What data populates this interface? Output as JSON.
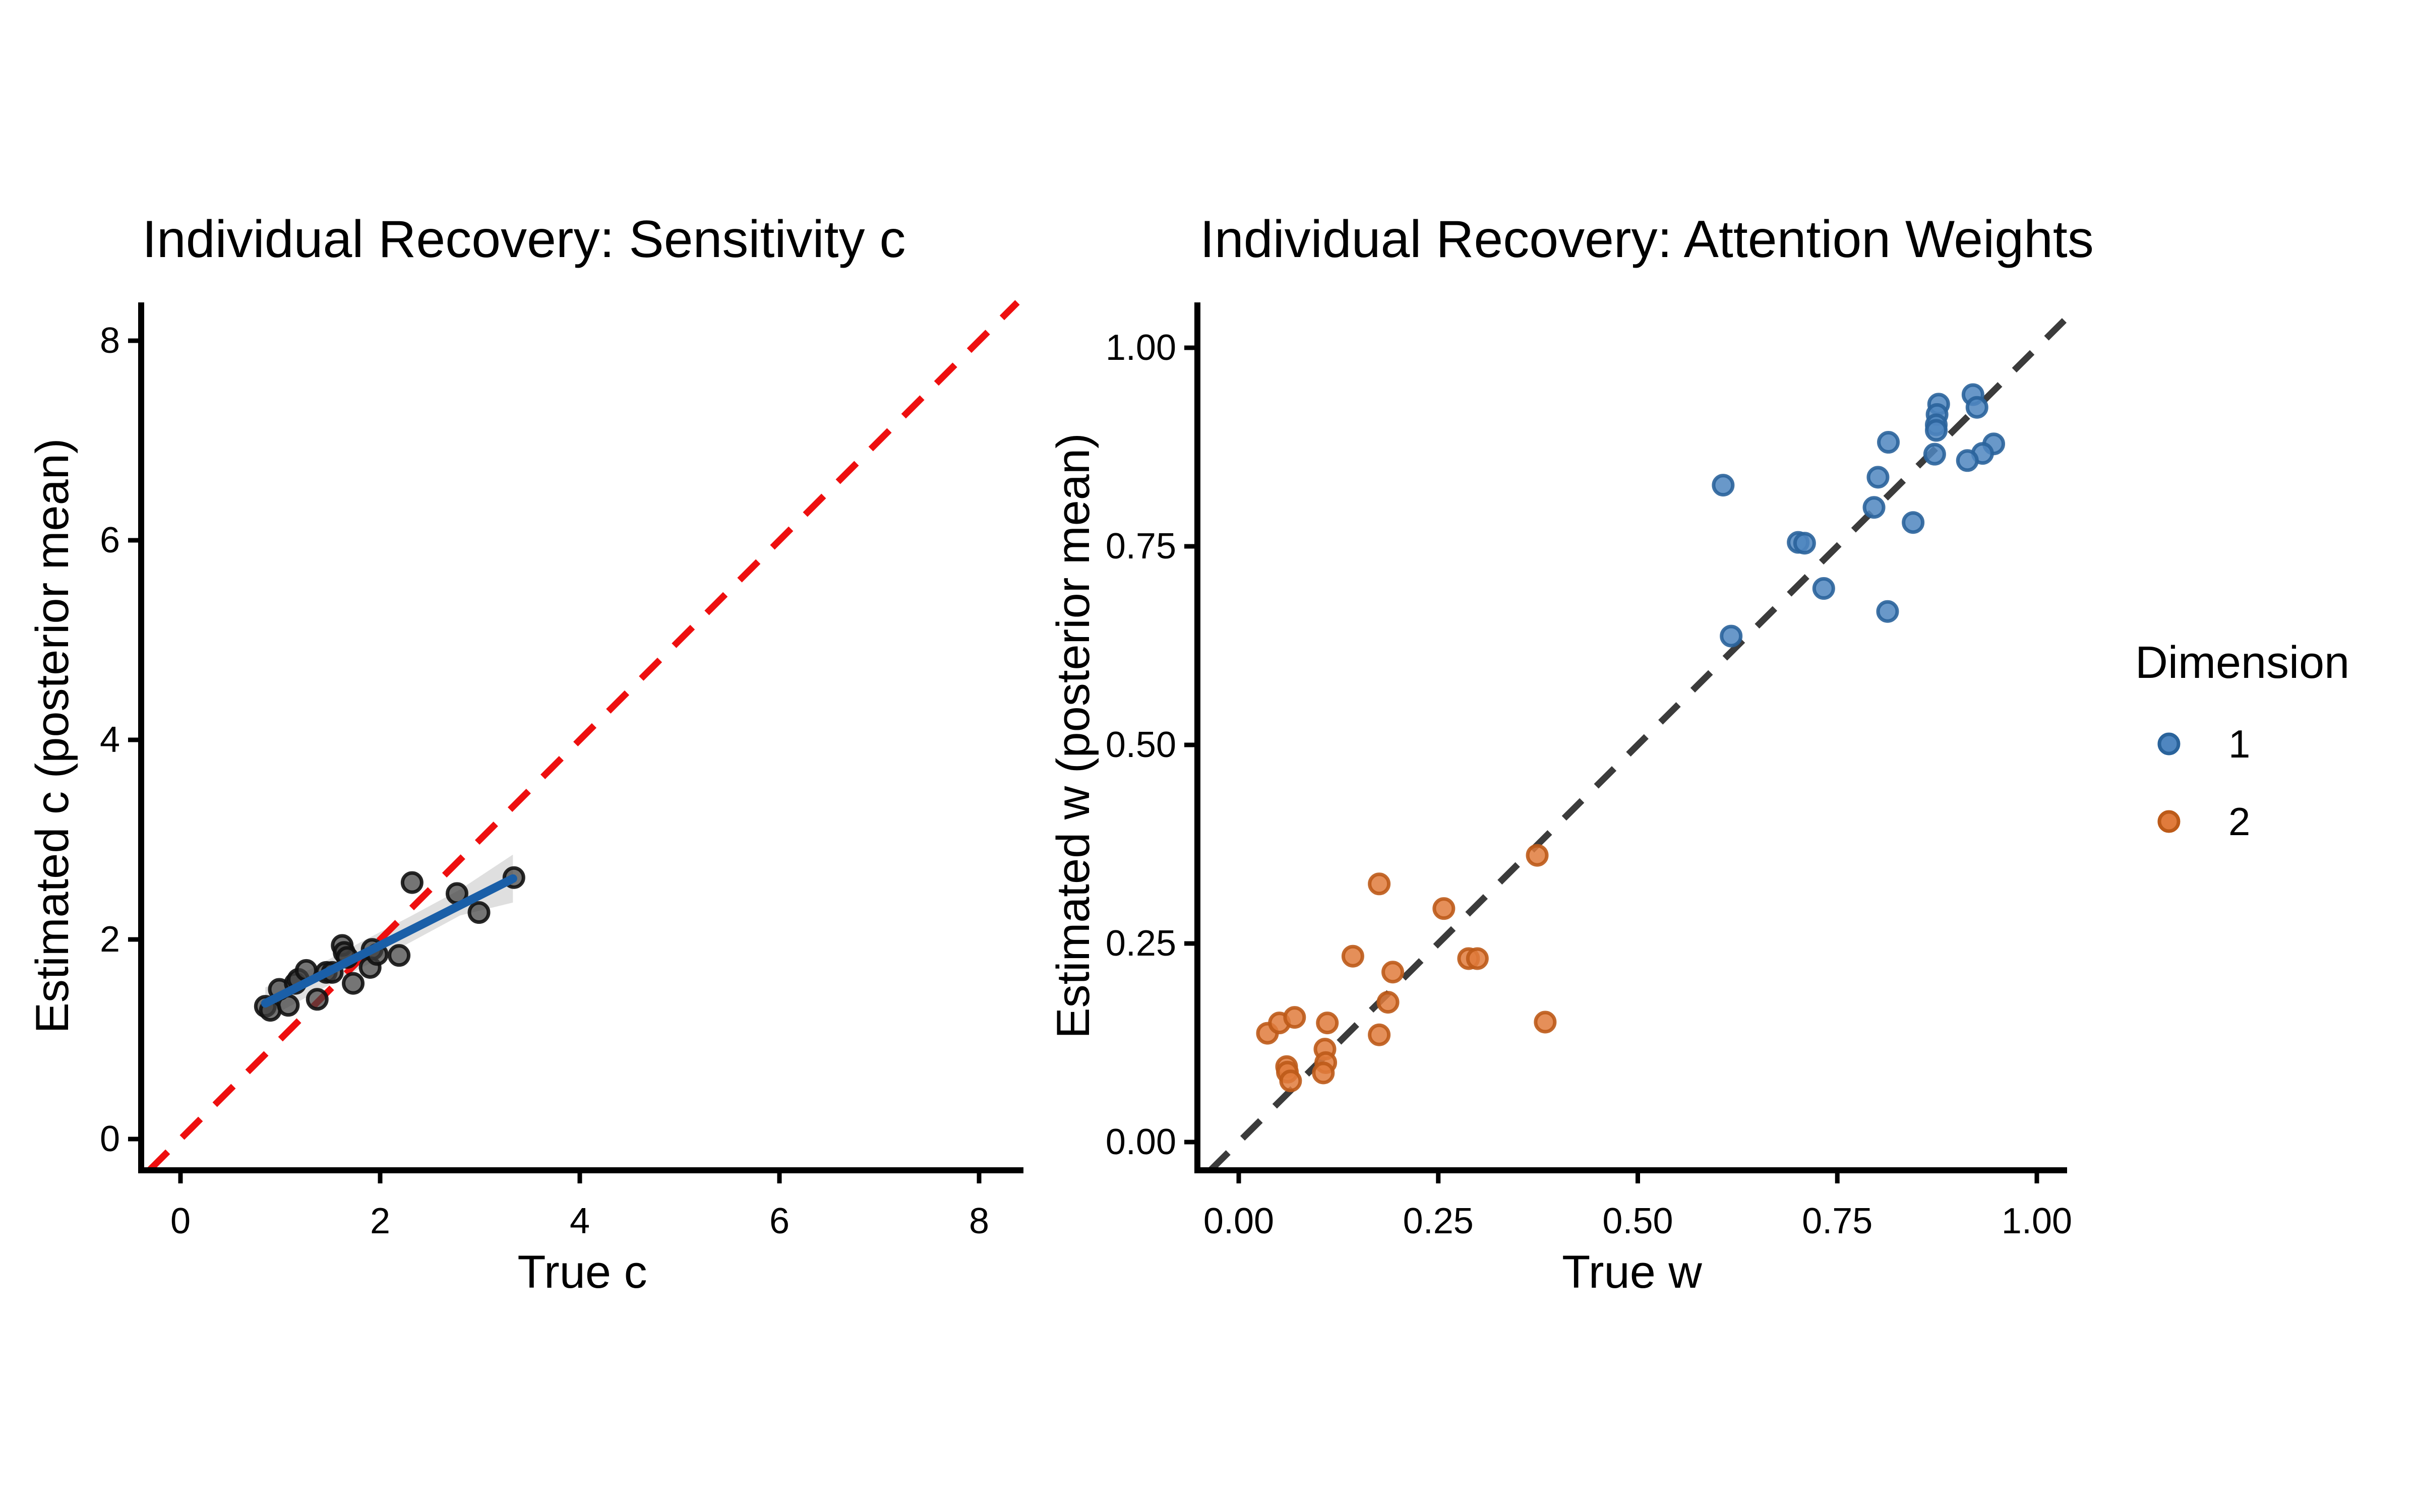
{
  "figure": {
    "background": "#ffffff",
    "colors": {
      "dark_point_fill": "#404040",
      "dark_point_stroke": "#111111",
      "blue_point_fill": "#4F86C0",
      "blue_point_stroke": "#2A639B",
      "orange_point_fill": "#E07B3C",
      "orange_point_stroke": "#BC5A18",
      "regression_line": "#1A5FA8",
      "identity_red": "#EE0F0F",
      "identity_dark": "#3B3B3B",
      "confidence_band": "#BFBFBF",
      "axis": "#000000"
    }
  },
  "chart_data": [
    {
      "id": "sensitivity",
      "type": "scatter",
      "title": "Individual Recovery: Sensitivity c",
      "xlabel": "True c",
      "ylabel": "Estimated c (posterior mean)",
      "xlim": [
        -0.39,
        8.44
      ],
      "ylim": [
        -0.31,
        8.38
      ],
      "grid": false,
      "xticks": {
        "values": [
          0,
          2,
          4,
          6,
          8
        ],
        "labels": [
          "0",
          "2",
          "4",
          "6",
          "8"
        ]
      },
      "yticks": {
        "values": [
          0,
          2,
          4,
          6,
          8
        ],
        "labels": [
          "0",
          "2",
          "4",
          "6",
          "8"
        ]
      },
      "identity_line": {
        "equation": "y = x",
        "style": "dashed",
        "color_key": "identity_red"
      },
      "regression_line": {
        "x": [
          0.85,
          3.33
        ],
        "y": [
          1.36,
          2.61
        ],
        "color_key": "regression_line"
      },
      "confidence_band": {
        "color_key": "confidence_band",
        "upper": [
          [
            0.85,
            1.52
          ],
          [
            1.3,
            1.7
          ],
          [
            1.8,
            1.97
          ],
          [
            2.3,
            2.23
          ],
          [
            2.8,
            2.5
          ],
          [
            3.33,
            2.85
          ]
        ],
        "lower": [
          [
            3.33,
            2.37
          ],
          [
            2.8,
            2.24
          ],
          [
            2.3,
            1.97
          ],
          [
            1.8,
            1.71
          ],
          [
            1.3,
            1.44
          ],
          [
            0.85,
            1.2
          ]
        ]
      },
      "series": [
        {
          "name": "individuals",
          "fill_key": "dark_point_fill",
          "stroke_key": "dark_point_stroke",
          "fill_opacity": 0.72,
          "points": [
            [
              0.85,
              1.33
            ],
            [
              0.9,
              1.29
            ],
            [
              1.08,
              1.34
            ],
            [
              0.99,
              1.5
            ],
            [
              1.15,
              1.56
            ],
            [
              1.18,
              1.6
            ],
            [
              1.26,
              1.69
            ],
            [
              1.37,
              1.4
            ],
            [
              1.46,
              1.67
            ],
            [
              1.52,
              1.67
            ],
            [
              1.62,
              1.94
            ],
            [
              1.64,
              1.87
            ],
            [
              1.67,
              1.82
            ],
            [
              1.73,
              1.56
            ],
            [
              1.9,
              1.72
            ],
            [
              1.92,
              1.9
            ],
            [
              1.97,
              1.85
            ],
            [
              2.19,
              1.84
            ],
            [
              2.32,
              2.57
            ],
            [
              2.77,
              2.46
            ],
            [
              2.99,
              2.27
            ],
            [
              3.34,
              2.62
            ]
          ]
        }
      ]
    },
    {
      "id": "attention-weights",
      "type": "scatter",
      "title": "Individual Recovery: Attention Weights",
      "xlabel": "True w",
      "ylabel": "Estimated w (posterior mean)",
      "xlim": [
        -0.05,
        1.04
      ],
      "ylim": [
        -0.04,
        1.06
      ],
      "grid": false,
      "xticks": {
        "values": [
          0,
          0.25,
          0.5,
          0.75,
          1
        ],
        "labels": [
          "0.00",
          "0.25",
          "0.50",
          "0.75",
          "1.00"
        ]
      },
      "yticks": {
        "values": [
          0,
          0.25,
          0.5,
          0.75,
          1
        ],
        "labels": [
          "0.00",
          "0.25",
          "0.50",
          "0.75",
          "1.00"
        ]
      },
      "identity_line": {
        "equation": "y = x",
        "style": "dashed",
        "color_key": "identity_dark"
      },
      "series": [
        {
          "name": "1",
          "fill_key": "blue_point_fill",
          "stroke_key": "blue_point_stroke",
          "fill_opacity": 0.85,
          "points": [
            [
              0.607,
              0.827
            ],
            [
              0.92,
              0.941
            ],
            [
              0.925,
              0.925
            ],
            [
              0.877,
              0.929
            ],
            [
              0.875,
              0.916
            ],
            [
              0.874,
              0.903
            ],
            [
              0.874,
              0.896
            ],
            [
              0.814,
              0.881
            ],
            [
              0.946,
              0.879
            ],
            [
              0.932,
              0.867
            ],
            [
              0.913,
              0.858
            ],
            [
              0.872,
              0.866
            ],
            [
              0.801,
              0.837
            ],
            [
              0.796,
              0.799
            ],
            [
              0.845,
              0.78
            ],
            [
              0.701,
              0.755
            ],
            [
              0.709,
              0.754
            ],
            [
              0.733,
              0.697
            ],
            [
              0.813,
              0.668
            ],
            [
              0.617,
              0.637
            ]
          ]
        },
        {
          "name": "2",
          "fill_key": "orange_point_fill",
          "stroke_key": "orange_point_stroke",
          "fill_opacity": 0.85,
          "points": [
            [
              0.374,
              0.361
            ],
            [
              0.176,
              0.325
            ],
            [
              0.257,
              0.294
            ],
            [
              0.288,
              0.231
            ],
            [
              0.299,
              0.231
            ],
            [
              0.143,
              0.234
            ],
            [
              0.193,
              0.214
            ],
            [
              0.187,
              0.176
            ],
            [
              0.176,
              0.135
            ],
            [
              0.384,
              0.151
            ],
            [
              0.036,
              0.137
            ],
            [
              0.051,
              0.15
            ],
            [
              0.07,
              0.157
            ],
            [
              0.111,
              0.15
            ],
            [
              0.108,
              0.117
            ],
            [
              0.109,
              0.1
            ],
            [
              0.106,
              0.087
            ],
            [
              0.06,
              0.095
            ],
            [
              0.061,
              0.088
            ],
            [
              0.065,
              0.077
            ]
          ]
        }
      ]
    }
  ],
  "legend": {
    "title": "Dimension",
    "items": [
      {
        "label": "1",
        "color_key": "blue_point_fill",
        "stroke_key": "blue_point_stroke"
      },
      {
        "label": "2",
        "color_key": "orange_point_fill",
        "stroke_key": "orange_point_stroke"
      }
    ]
  }
}
